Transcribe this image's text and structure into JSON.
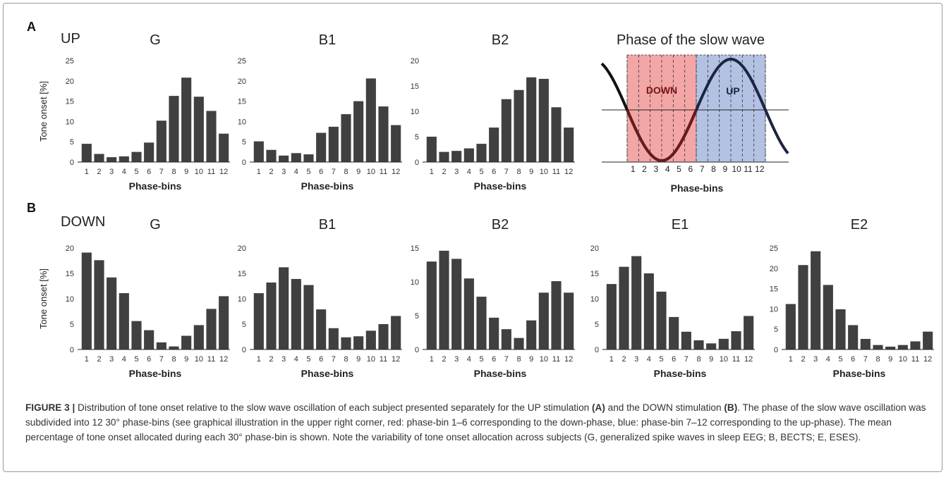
{
  "panels": {
    "a_letter": "A",
    "b_letter": "B",
    "up_label": "UP",
    "down_label": "DOWN"
  },
  "chart_data": [
    {
      "type": "bar",
      "row": "A",
      "title": "G",
      "xlabel": "Phase-bins",
      "ylabel": "Tone onset [%]",
      "categories": [
        "1",
        "2",
        "3",
        "4",
        "5",
        "6",
        "7",
        "8",
        "9",
        "10",
        "11",
        "12"
      ],
      "values": [
        4.5,
        2.0,
        1.2,
        1.4,
        2.5,
        4.8,
        10.2,
        16.3,
        20.8,
        16.1,
        12.6,
        7.0
      ],
      "ylim": [
        0,
        25
      ],
      "yticks": [
        0,
        5,
        10,
        15,
        20,
        25
      ]
    },
    {
      "type": "bar",
      "row": "A",
      "title": "B1",
      "xlabel": "Phase-bins",
      "ylabel": "",
      "categories": [
        "1",
        "2",
        "3",
        "4",
        "5",
        "6",
        "7",
        "8",
        "9",
        "10",
        "11",
        "12"
      ],
      "values": [
        5.1,
        3.0,
        1.6,
        2.2,
        1.9,
        7.2,
        8.7,
        11.8,
        15.0,
        20.6,
        13.7,
        9.1
      ],
      "ylim": [
        0,
        25
      ],
      "yticks": [
        0,
        5,
        10,
        15,
        20,
        25
      ]
    },
    {
      "type": "bar",
      "row": "A",
      "title": "B2",
      "xlabel": "Phase-bins",
      "ylabel": "",
      "categories": [
        "1",
        "2",
        "3",
        "4",
        "5",
        "6",
        "7",
        "8",
        "9",
        "10",
        "11",
        "12"
      ],
      "values": [
        5.0,
        2.0,
        2.2,
        2.7,
        3.6,
        6.8,
        12.4,
        14.2,
        16.7,
        16.4,
        10.8,
        6.8
      ],
      "ylim": [
        0,
        20
      ],
      "yticks": [
        0,
        5,
        10,
        15,
        20
      ]
    },
    {
      "type": "bar",
      "row": "B",
      "title": "G",
      "xlabel": "Phase-bins",
      "ylabel": "Tone onset [%]",
      "categories": [
        "1",
        "2",
        "3",
        "4",
        "5",
        "6",
        "7",
        "8",
        "9",
        "10",
        "11",
        "12"
      ],
      "values": [
        19.1,
        17.6,
        14.2,
        11.1,
        5.6,
        3.8,
        1.4,
        0.6,
        2.7,
        4.8,
        8.0,
        10.5
      ],
      "ylim": [
        0,
        20
      ],
      "yticks": [
        0,
        5,
        10,
        15,
        20
      ]
    },
    {
      "type": "bar",
      "row": "B",
      "title": "B1",
      "xlabel": "Phase-bins",
      "ylabel": "",
      "categories": [
        "1",
        "2",
        "3",
        "4",
        "5",
        "6",
        "7",
        "8",
        "9",
        "10",
        "11",
        "12"
      ],
      "values": [
        11.1,
        13.2,
        16.2,
        13.9,
        12.7,
        7.9,
        4.2,
        2.4,
        2.6,
        3.7,
        5.0,
        6.6
      ],
      "ylim": [
        0,
        20
      ],
      "yticks": [
        0,
        5,
        10,
        15,
        20
      ]
    },
    {
      "type": "bar",
      "row": "B",
      "title": "B2",
      "xlabel": "Phase-bins",
      "ylabel": "",
      "categories": [
        "1",
        "2",
        "3",
        "4",
        "5",
        "6",
        "7",
        "8",
        "9",
        "10",
        "11",
        "12"
      ],
      "values": [
        13.0,
        14.6,
        13.4,
        10.5,
        7.8,
        4.7,
        3.0,
        1.7,
        4.3,
        8.4,
        10.1,
        8.4
      ],
      "ylim": [
        0,
        15
      ],
      "yticks": [
        0,
        5,
        10,
        15
      ]
    },
    {
      "type": "bar",
      "row": "B",
      "title": "E1",
      "xlabel": "Phase-bins",
      "ylabel": "",
      "categories": [
        "1",
        "2",
        "3",
        "4",
        "5",
        "6",
        "7",
        "8",
        "9",
        "10",
        "11",
        "12"
      ],
      "values": [
        12.9,
        16.3,
        18.4,
        15.0,
        11.4,
        6.4,
        3.5,
        1.8,
        1.2,
        2.1,
        3.6,
        6.6
      ],
      "ylim": [
        0,
        20
      ],
      "yticks": [
        0,
        5,
        10,
        15,
        20
      ]
    },
    {
      "type": "bar",
      "row": "B",
      "title": "E2",
      "xlabel": "Phase-bins",
      "ylabel": "",
      "categories": [
        "1",
        "2",
        "3",
        "4",
        "5",
        "6",
        "7",
        "8",
        "9",
        "10",
        "11",
        "12"
      ],
      "values": [
        11.2,
        20.8,
        24.2,
        15.9,
        9.9,
        6.0,
        2.6,
        1.1,
        0.7,
        1.1,
        2.0,
        4.4
      ],
      "ylim": [
        0,
        25
      ],
      "yticks": [
        0,
        5,
        10,
        15,
        20,
        25
      ]
    }
  ],
  "phase_diagram": {
    "title": "Phase of the slow wave",
    "xlabel": "Phase-bins",
    "down_label": "DOWN",
    "up_label": "UP",
    "bins": [
      "1",
      "2",
      "3",
      "4",
      "5",
      "6",
      "7",
      "8",
      "9",
      "10",
      "11",
      "12"
    ],
    "down_color": "#f3a6a6",
    "up_color": "#b3c1e3",
    "down_wave_color": "#6b1a1a",
    "up_wave_color": "#1c2540"
  },
  "caption": {
    "title": "FIGURE 3 |",
    "part1": " Distribution of tone onset relative to the slow wave oscillation of each subject presented separately for the UP stimulation ",
    "ref_a": "(A)",
    "part2": " and the DOWN stimulation ",
    "ref_b": "(B)",
    "part3": ". The phase of the slow wave oscillation was subdivided into 12 30° phase-bins (see graphical illustration in the upper right corner, red: phase-bin 1–6 corresponding to the down-phase, blue: phase-bin 7–12 corresponding to the up-phase). The mean percentage of tone onset allocated during each 30° phase-bin is shown. Note the variability of tone onset allocation across subjects (G, generalized spike waves in sleep EEG; B, BECTS; E, ESES)."
  },
  "colors": {
    "bar": "#404040",
    "axis": "#222222",
    "text": "#333333"
  }
}
